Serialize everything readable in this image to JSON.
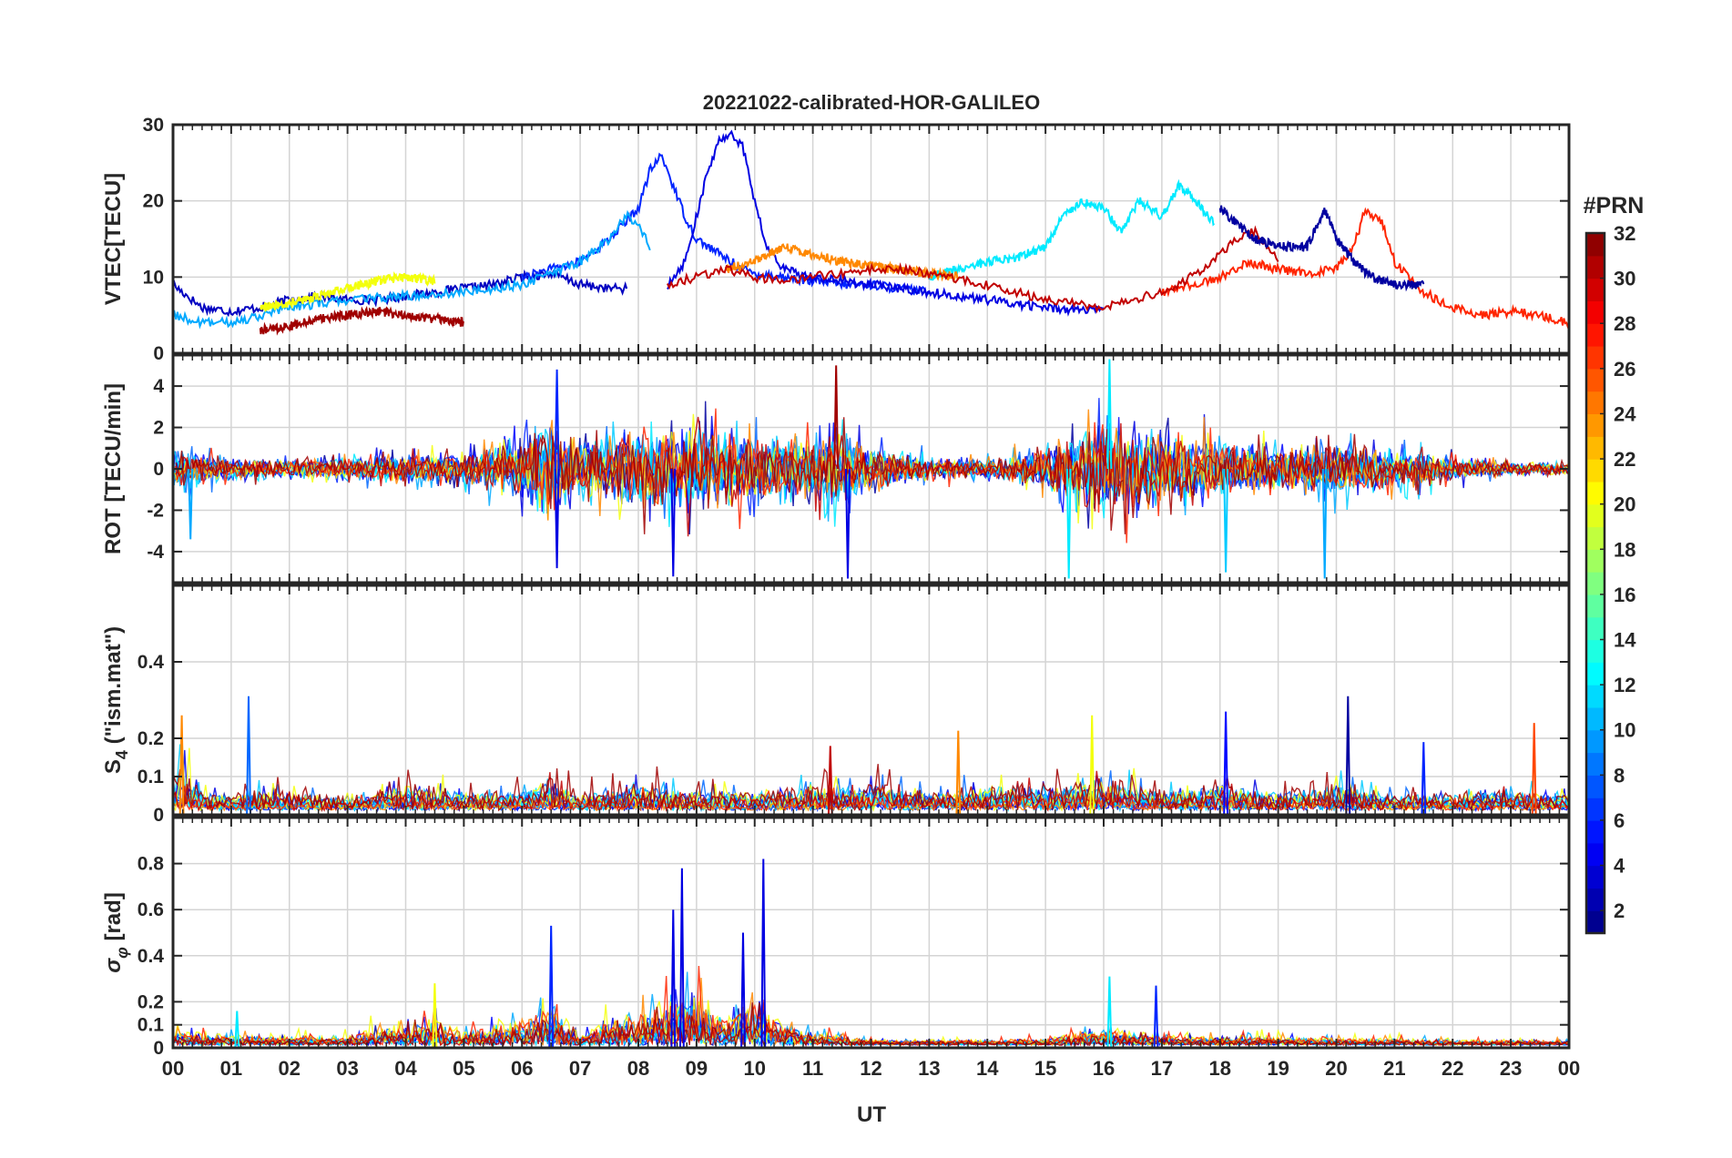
{
  "chart_data": {
    "title": "20221022-calibrated-HOR-GALILEO",
    "type": "line",
    "xlabel": "UT",
    "x_range": [
      0,
      24
    ],
    "x_ticks": [
      "00",
      "01",
      "02",
      "03",
      "04",
      "05",
      "06",
      "07",
      "08",
      "09",
      "10",
      "11",
      "12",
      "13",
      "14",
      "15",
      "16",
      "17",
      "18",
      "19",
      "20",
      "21",
      "22",
      "23",
      "00"
    ],
    "grid": true,
    "legend": "none",
    "colorbar": {
      "label": "#PRN",
      "range": [
        1,
        32
      ],
      "ticks": [
        2,
        4,
        6,
        8,
        10,
        12,
        14,
        16,
        18,
        20,
        22,
        24,
        26,
        28,
        30,
        32
      ],
      "colormap": "jet"
    },
    "panels": [
      {
        "id": "vtec",
        "ylabel": "VTEC[TECU]",
        "ylim": [
          0,
          30
        ],
        "yticks": [
          0,
          10,
          20,
          30
        ],
        "series": [
          {
            "prn": 3,
            "x": [
              0,
              0.5,
              1,
              1.5,
              2,
              2.5,
              3,
              3.5,
              4,
              4.5,
              5,
              5.5,
              6,
              6.5,
              7,
              7.5,
              7.8
            ],
            "y": [
              9,
              6,
              5.5,
              6,
              7,
              7.5,
              7,
              7,
              7.5,
              8,
              8.5,
              9,
              10,
              10.5,
              9,
              8.5,
              8.5
            ]
          },
          {
            "prn": 6,
            "x": [
              6,
              6.5,
              7,
              7.5,
              8,
              8.2,
              8.4,
              8.6,
              8.8,
              9,
              9.2,
              9.4,
              9.6,
              9.8,
              10,
              10.5,
              11,
              11.5,
              12,
              12.5,
              13
            ],
            "y": [
              10,
              11,
              12,
              15,
              19,
              24,
              26,
              22,
              18,
              15,
              14,
              13,
              12,
              11,
              10.5,
              10,
              9.5,
              9,
              9,
              8.5,
              8
            ]
          },
          {
            "prn": 4,
            "x": [
              8.5,
              8.8,
              9,
              9.2,
              9.4,
              9.6,
              9.8,
              10,
              10.2,
              10.5,
              11,
              12,
              13,
              14,
              15,
              16
            ],
            "y": [
              9,
              12,
              18,
              24,
              28,
              29,
              27,
              20,
              14,
              11,
              10,
              9,
              8,
              7,
              6,
              5.5
            ]
          },
          {
            "prn": 10,
            "x": [
              0,
              0.5,
              1,
              1.5,
              2,
              3,
              4,
              5,
              6,
              7,
              7.5,
              7.8,
              8,
              8.2
            ],
            "y": [
              5,
              4,
              4,
              5,
              6,
              7,
              7.5,
              8,
              9,
              12,
              15,
              18,
              17,
              14
            ]
          },
          {
            "prn": 12,
            "x": [
              13,
              13.5,
              14,
              14.5,
              15,
              15.3,
              15.6,
              16,
              16.3,
              16.6,
              17,
              17.3,
              17.6,
              17.9
            ],
            "y": [
              10,
              11,
              12,
              12.5,
              14,
              18,
              20,
              19,
              16,
              20,
              18,
              22,
              20,
              17
            ]
          },
          {
            "prn": 20,
            "x": [
              1.5,
              2,
              2.5,
              3,
              3.5,
              4,
              4.5
            ],
            "y": [
              6,
              6.5,
              7.5,
              8.5,
              9.5,
              10,
              9.5
            ]
          },
          {
            "prn": 24,
            "x": [
              9.5,
              10,
              10.5,
              11,
              11.5,
              12,
              12.5,
              13,
              13.5
            ],
            "y": [
              11,
              12,
              14,
              13,
              12,
              11.5,
              11,
              10.5,
              10
            ]
          },
          {
            "prn": 27,
            "x": [
              17,
              17.5,
              18,
              18.5,
              19,
              19.5,
              20,
              20.3,
              20.5,
              20.8,
              21,
              21.5,
              22,
              22.5,
              23,
              23.5,
              24
            ],
            "y": [
              8,
              9,
              10,
              12,
              11,
              10.5,
              11,
              14,
              19,
              17,
              12,
              8,
              6,
              5,
              5.5,
              5,
              4
            ]
          },
          {
            "prn": 31,
            "x": [
              1.5,
              2,
              2.5,
              3,
              3.5,
              4,
              4.5,
              5
            ],
            "y": [
              3,
              3.5,
              4.5,
              5,
              5.5,
              5,
              4.5,
              4
            ]
          },
          {
            "prn": 30,
            "x": [
              8.5,
              9,
              9.5,
              10,
              10.5,
              11,
              11.5,
              12,
              12.5,
              13,
              14,
              15,
              16,
              17,
              17.5,
              18,
              18.3,
              18.6,
              19
            ],
            "y": [
              9,
              10,
              11,
              10,
              9.5,
              10,
              10.5,
              11,
              11,
              10.5,
              9,
              7,
              6,
              8,
              10,
              13,
              15,
              16,
              12
            ]
          },
          {
            "prn": 2,
            "x": [
              18,
              18.3,
              18.6,
              19,
              19.5,
              19.8,
              20,
              20.3,
              20.6,
              21,
              21.5
            ],
            "y": [
              19,
              17,
              15,
              14,
              14,
              19,
              15,
              12,
              10,
              9,
              9
            ]
          }
        ]
      },
      {
        "id": "rot",
        "ylabel": "ROT [TECU/min]",
        "ylim": [
          -5.5,
          5.5
        ],
        "yticks": [
          -4,
          -2,
          0,
          2,
          4
        ],
        "envelope": {
          "x": [
            0,
            1,
            2,
            3,
            4,
            5,
            6,
            6.5,
            7,
            8,
            9,
            10,
            11,
            11.5,
            12,
            13,
            14,
            15,
            16,
            17,
            18,
            19,
            20,
            21,
            22,
            23,
            24
          ],
          "amp": [
            1.5,
            0.8,
            0.6,
            0.8,
            1.0,
            1.0,
            2.5,
            3.5,
            2.0,
            3.0,
            3.0,
            2.5,
            2.0,
            3.0,
            1.5,
            0.8,
            0.6,
            1.5,
            3.5,
            2.5,
            2.0,
            1.5,
            2.0,
            1.5,
            0.8,
            0.5,
            0.4
          ]
        },
        "spikes": [
          {
            "x": 6.6,
            "y": 4.8,
            "prn": 6
          },
          {
            "x": 6.6,
            "y": -4.8,
            "prn": 4
          },
          {
            "x": 11.4,
            "y": 5.0,
            "prn": 31
          },
          {
            "x": 11.6,
            "y": -5.3,
            "prn": 4
          },
          {
            "x": 15.4,
            "y": -5.3,
            "prn": 12
          },
          {
            "x": 16.1,
            "y": 5.3,
            "prn": 12
          },
          {
            "x": 18.1,
            "y": -5.0,
            "prn": 11
          },
          {
            "x": 19.8,
            "y": -5.3,
            "prn": 10
          },
          {
            "x": 8.6,
            "y": -5.2,
            "prn": 4
          },
          {
            "x": 0.3,
            "y": -3.4,
            "prn": 10
          }
        ]
      },
      {
        "id": "s4",
        "ylabel": "S_4 (\"ism.mat\")",
        "ylim": [
          0,
          0.6
        ],
        "yticks": [
          0,
          0.1,
          0.2,
          0.4
        ],
        "baseline": {
          "x": [
            0,
            0.2,
            0.5,
            1,
            1.5,
            2,
            3,
            4,
            5,
            6,
            6.5,
            7,
            8,
            9,
            10,
            11,
            12,
            13,
            14,
            15,
            16,
            17,
            18,
            19,
            20,
            21,
            22,
            23,
            24
          ],
          "level": [
            0.1,
            0.15,
            0.06,
            0.05,
            0.06,
            0.06,
            0.04,
            0.08,
            0.06,
            0.06,
            0.1,
            0.05,
            0.08,
            0.06,
            0.06,
            0.07,
            0.08,
            0.06,
            0.08,
            0.08,
            0.1,
            0.06,
            0.08,
            0.06,
            0.08,
            0.05,
            0.05,
            0.06,
            0.05
          ]
        },
        "spikes": [
          {
            "x": 0.15,
            "y": 0.26,
            "prn": 24
          },
          {
            "x": 1.3,
            "y": 0.31,
            "prn": 8
          },
          {
            "x": 18.1,
            "y": 0.27,
            "prn": 5
          },
          {
            "x": 20.2,
            "y": 0.31,
            "prn": 2
          },
          {
            "x": 15.8,
            "y": 0.26,
            "prn": 20
          },
          {
            "x": 13.5,
            "y": 0.22,
            "prn": 24
          },
          {
            "x": 23.4,
            "y": 0.24,
            "prn": 26
          },
          {
            "x": 21.5,
            "y": 0.19,
            "prn": 6
          },
          {
            "x": 11.3,
            "y": 0.18,
            "prn": 30
          }
        ]
      },
      {
        "id": "sigma_phi",
        "ylabel": "σ_φ [rad]",
        "ylim": [
          0,
          1
        ],
        "yticks": [
          0,
          0.1,
          0.2,
          0.4,
          0.6,
          0.8
        ],
        "baseline": {
          "x": [
            0,
            1,
            2,
            3,
            3.5,
            4,
            4.5,
            5,
            6,
            6.5,
            7,
            7.5,
            8,
            8.5,
            9,
            9.5,
            10,
            10.5,
            11,
            11.5,
            12,
            13,
            14,
            15,
            16,
            17,
            18,
            19,
            20,
            21,
            22,
            23,
            24
          ],
          "level": [
            0.08,
            0.06,
            0.05,
            0.05,
            0.1,
            0.12,
            0.15,
            0.08,
            0.15,
            0.25,
            0.05,
            0.15,
            0.2,
            0.25,
            0.3,
            0.15,
            0.25,
            0.15,
            0.08,
            0.05,
            0.03,
            0.03,
            0.03,
            0.04,
            0.1,
            0.06,
            0.05,
            0.05,
            0.04,
            0.04,
            0.03,
            0.03,
            0.03
          ]
        },
        "spikes": [
          {
            "x": 6.5,
            "y": 0.53,
            "prn": 6
          },
          {
            "x": 8.6,
            "y": 0.6,
            "prn": 4
          },
          {
            "x": 8.75,
            "y": 0.78,
            "prn": 4
          },
          {
            "x": 10.15,
            "y": 0.82,
            "prn": 4
          },
          {
            "x": 9.8,
            "y": 0.5,
            "prn": 4
          },
          {
            "x": 4.5,
            "y": 0.28,
            "prn": 20
          },
          {
            "x": 16.1,
            "y": 0.31,
            "prn": 12
          },
          {
            "x": 16.9,
            "y": 0.27,
            "prn": 6
          },
          {
            "x": 1.1,
            "y": 0.16,
            "prn": 12
          }
        ]
      }
    ]
  }
}
